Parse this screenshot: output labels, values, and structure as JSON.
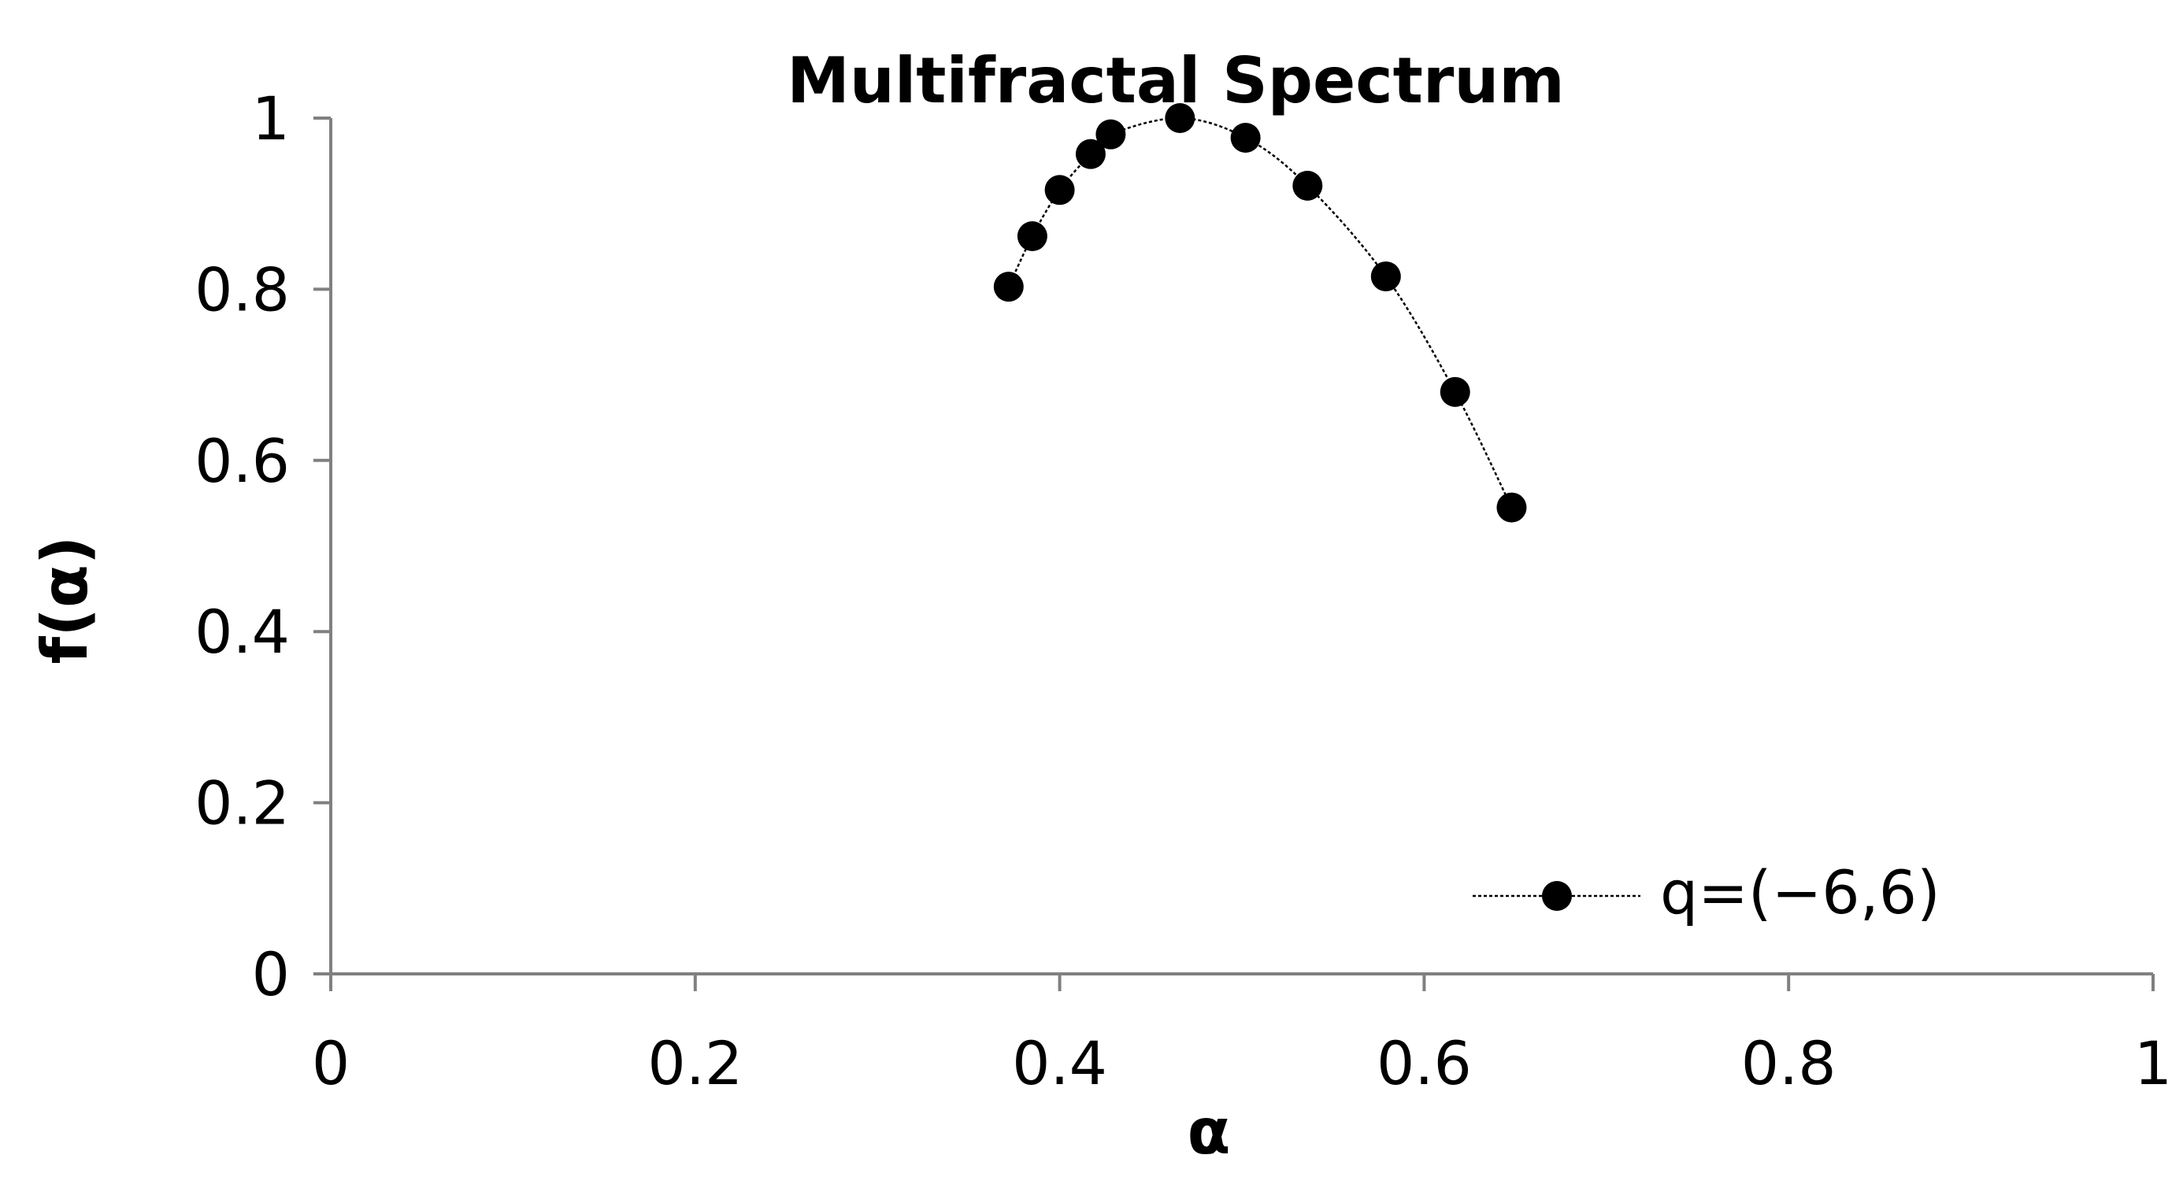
{
  "chart_data": {
    "type": "scatter",
    "title": "Multifractal Spectrum",
    "xlabel": "α",
    "ylabel": "f(α)",
    "xlim": [
      0,
      1
    ],
    "ylim": [
      0,
      1
    ],
    "xticks": [
      "0",
      "0.2",
      "0.4",
      "0.6",
      "0.8",
      "1"
    ],
    "yticks": [
      "0",
      "0.2",
      "0.4",
      "0.6",
      "0.8",
      "1"
    ],
    "grid": false,
    "legend_position": "bottom-right",
    "series": [
      {
        "name": "q=(−6,6)",
        "marker": "circle",
        "line": "dotted",
        "color": "#000000",
        "x": [
          0.372,
          0.385,
          0.4,
          0.417,
          0.428,
          0.466,
          0.502,
          0.536,
          0.579,
          0.617,
          0.648
        ],
        "y": [
          0.803,
          0.862,
          0.916,
          0.958,
          0.981,
          1.0,
          0.977,
          0.921,
          0.815,
          0.68,
          0.545
        ]
      }
    ]
  }
}
